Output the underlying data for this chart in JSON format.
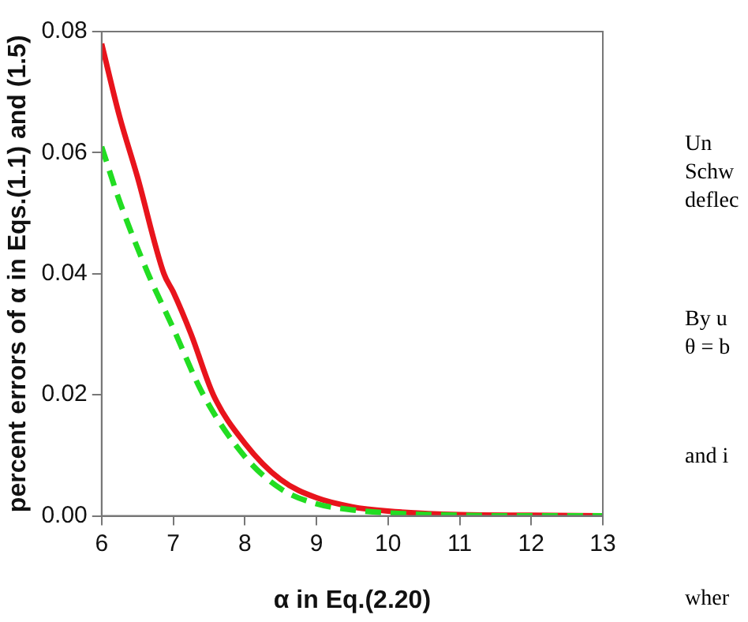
{
  "chart_data": {
    "type": "line",
    "xlabel": "α in Eq.(2.20)",
    "ylabel": "percent errors of α in Eqs.(1.1) and (1.5)",
    "xlim": [
      6,
      13
    ],
    "xticks": [
      6,
      7,
      8,
      9,
      10,
      11,
      12,
      13
    ],
    "ylim": [
      0,
      0.08
    ],
    "yticks": [
      {
        "value": 0,
        "label": "0.00"
      },
      {
        "value": 0.02,
        "label": "0.02"
      },
      {
        "value": 0.04,
        "label": "0.04"
      },
      {
        "value": 0.06,
        "label": "0.06"
      },
      {
        "value": 0.08,
        "label": "0.08"
      }
    ],
    "grid": false,
    "legend": false,
    "marker": "none",
    "series": [
      {
        "color": "#e8141c",
        "line_style": "solid",
        "x": [
          6,
          6.25,
          6.5,
          6.87,
          7,
          7.25,
          7.56,
          8,
          8.5,
          9,
          9.5,
          10,
          11,
          12,
          13
        ],
        "values": [
          0.078,
          0.066,
          0.056,
          0.04,
          0.037,
          0.03,
          0.02,
          0.012,
          0.006,
          0.003,
          0.0015,
          0.0008,
          0.0002,
          0.0001,
          0
        ]
      },
      {
        "color": "#22dd22",
        "line_style": "dashed",
        "x": [
          6,
          6.25,
          6.65,
          7,
          7.42,
          8,
          8.5,
          9,
          9.5,
          10,
          11,
          12,
          13
        ],
        "values": [
          0.061,
          0.052,
          0.04,
          0.031,
          0.02,
          0.0098,
          0.0045,
          0.002,
          0.001,
          0.0005,
          0.0001,
          0,
          0
        ]
      }
    ],
    "annotations": [
      "Un",
      "Schw",
      "deflec",
      "By u",
      "θ = b",
      "and i",
      "wher"
    ]
  }
}
